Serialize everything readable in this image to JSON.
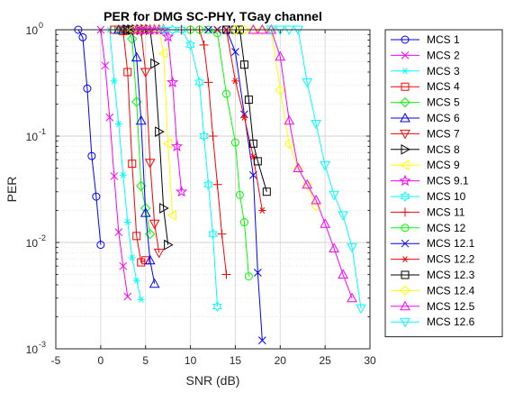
{
  "chart_data": {
    "type": "line",
    "title": "PER for DMG SC-PHY, TGay channel",
    "xlabel": "SNR (dB)",
    "ylabel": "PER",
    "xlim": [
      -5,
      30
    ],
    "ylim": [
      0.001,
      1
    ],
    "yscale": "log",
    "grid": true,
    "legend_position": "outside-right",
    "x_ticks": [
      -5,
      0,
      5,
      10,
      15,
      20,
      25,
      30
    ],
    "y_ticks": [
      {
        "value": 0.001,
        "base": "10",
        "exp": "-3"
      },
      {
        "value": 0.01,
        "base": "10",
        "exp": "-2"
      },
      {
        "value": 0.1,
        "base": "10",
        "exp": "-1"
      },
      {
        "value": 1,
        "base": "10",
        "exp": "0"
      }
    ],
    "series": [
      {
        "name": "MCS 1",
        "color": "#0000ff",
        "marker": "circle",
        "x": [
          -2.5,
          -2,
          -1.5,
          -1,
          -0.5,
          0
        ],
        "y": [
          1.0,
          0.85,
          0.28,
          0.065,
          0.027,
          0.0095
        ]
      },
      {
        "name": "MCS 2",
        "color": "#ff00ff",
        "marker": "x",
        "x": [
          0,
          0.5,
          1,
          1.5,
          2,
          2.5,
          3
        ],
        "y": [
          1.0,
          0.46,
          0.15,
          0.042,
          0.0125,
          0.006,
          0.0031
        ]
      },
      {
        "name": "MCS 3",
        "color": "#00ffff",
        "marker": "asterisk",
        "x": [
          1,
          1.5,
          2,
          2.5,
          3,
          3.5,
          4,
          4.5
        ],
        "y": [
          1.0,
          0.33,
          0.13,
          0.043,
          0.0155,
          0.0072,
          0.0044,
          0.0029
        ]
      },
      {
        "name": "MCS 4",
        "color": "#ff0000",
        "marker": "square",
        "x": [
          1.5,
          2,
          2.5,
          3,
          3.5,
          4,
          4.5,
          5
        ],
        "y": [
          1.0,
          1.0,
          0.97,
          0.4,
          0.055,
          0.0115,
          0.0065,
          0.0068
        ]
      },
      {
        "name": "MCS 5",
        "color": "#00ff00",
        "marker": "diamond",
        "x": [
          2,
          2.5,
          3,
          3.5,
          4,
          4.5,
          5,
          5.5
        ],
        "y": [
          1.0,
          1.0,
          1.0,
          0.82,
          0.21,
          0.034,
          0.021,
          0.012
        ]
      },
      {
        "name": "MCS 6",
        "color": "#0000ff",
        "marker": "triangle-up",
        "x": [
          2,
          2.5,
          3,
          3.5,
          4,
          4.5,
          5,
          5.5,
          6
        ],
        "y": [
          1.0,
          1.0,
          1.0,
          1.0,
          0.55,
          0.14,
          0.019,
          0.0068,
          0.0041
        ]
      },
      {
        "name": "MCS 7",
        "color": "#ff0000",
        "marker": "triangle-down",
        "x": [
          2.5,
          3,
          3.5,
          4,
          4.5,
          5,
          5.5,
          6,
          6.5
        ],
        "y": [
          1.0,
          1.0,
          1.0,
          1.0,
          0.97,
          0.4,
          0.056,
          0.015,
          0.008
        ]
      },
      {
        "name": "MCS 8",
        "color": "#000000",
        "marker": "triangle-right",
        "x": [
          3,
          3.5,
          4,
          4.5,
          5,
          5.5,
          6,
          6.5,
          7,
          7.5
        ],
        "y": [
          1.0,
          1.0,
          1.0,
          1.0,
          1.0,
          1.0,
          0.48,
          0.11,
          0.021,
          0.0095
        ]
      },
      {
        "name": "MCS 9",
        "color": "#ffff00",
        "marker": "triangle-left",
        "x": [
          3.5,
          4,
          4.5,
          5,
          5.5,
          6,
          6.5,
          7,
          7.5,
          8
        ],
        "y": [
          1.0,
          1.0,
          1.0,
          1.0,
          1.0,
          1.0,
          1.0,
          0.6,
          0.085,
          0.018
        ]
      },
      {
        "name": "MCS 9.1",
        "color": "#ff00ff",
        "marker": "pentagram",
        "x": [
          4,
          4.5,
          5,
          5.5,
          6,
          6.5,
          7,
          7.5,
          8,
          8.5,
          9
        ],
        "y": [
          1.0,
          1.0,
          1.0,
          1.0,
          1.0,
          1.0,
          1.0,
          0.86,
          0.32,
          0.08,
          0.03
        ]
      },
      {
        "name": "MCS 10",
        "color": "#00ffff",
        "marker": "hexagram",
        "x": [
          7,
          8,
          9,
          10,
          11,
          11.5,
          12,
          12.5,
          13
        ],
        "y": [
          1.0,
          1.0,
          1.0,
          0.72,
          0.32,
          0.1,
          0.035,
          0.012,
          0.0025
        ]
      },
      {
        "name": "MCS 11",
        "color": "#ff0000",
        "marker": "plus",
        "x": [
          9,
          10,
          11,
          11.5,
          12,
          12.5,
          13,
          13.5,
          14
        ],
        "y": [
          1.0,
          1.0,
          1.0,
          0.72,
          0.32,
          0.1,
          0.035,
          0.012,
          0.005
        ]
      },
      {
        "name": "MCS 12",
        "color": "#00ff00",
        "marker": "circle",
        "x": [
          10,
          11,
          12,
          13,
          14,
          15,
          15.5,
          16,
          16.5
        ],
        "y": [
          1.0,
          1.0,
          1.0,
          0.93,
          0.25,
          0.087,
          0.028,
          0.0155,
          0.0048
        ]
      },
      {
        "name": "MCS 12.1",
        "color": "#0000ff",
        "marker": "x",
        "x": [
          12,
          13,
          14,
          15,
          16,
          17,
          17.5,
          18
        ],
        "y": [
          1.0,
          1.0,
          1.0,
          0.62,
          0.16,
          0.043,
          0.0052,
          0.0012
        ]
      },
      {
        "name": "MCS 12.2",
        "color": "#ff0000",
        "marker": "asterisk",
        "x": [
          13,
          14,
          15,
          16,
          17,
          18
        ],
        "y": [
          1.0,
          1.0,
          0.33,
          0.15,
          0.064,
          0.02
        ]
      },
      {
        "name": "MCS 12.3",
        "color": "#000000",
        "marker": "square",
        "x": [
          14,
          15,
          15.5,
          16,
          16.5,
          17,
          17.5,
          18.5
        ],
        "y": [
          1.0,
          1.0,
          1.0,
          0.47,
          0.22,
          0.085,
          0.058,
          0.03
        ]
      },
      {
        "name": "MCS 12.4",
        "color": "#ffff00",
        "marker": "diamond",
        "x": [
          15,
          16,
          17,
          18,
          19,
          20,
          21,
          22,
          23,
          24
        ],
        "y": [
          1.0,
          1.0,
          1.0,
          1.0,
          1.0,
          0.27,
          0.085,
          0.05,
          0.035,
          0.022
        ]
      },
      {
        "name": "MCS 12.5",
        "color": "#ff00ff",
        "marker": "triangle-up",
        "x": [
          17,
          18,
          19,
          20,
          21,
          22,
          23,
          24,
          25,
          26,
          27,
          28
        ],
        "y": [
          1.0,
          1.0,
          1.0,
          0.56,
          0.14,
          0.05,
          0.035,
          0.025,
          0.015,
          0.0088,
          0.005,
          0.003
        ]
      },
      {
        "name": "MCS 12.6",
        "color": "#00ffff",
        "marker": "triangle-down",
        "x": [
          19,
          20,
          21,
          22,
          23,
          24,
          25,
          26,
          27,
          28,
          29
        ],
        "y": [
          1.0,
          1.0,
          1.0,
          1.0,
          0.32,
          0.13,
          0.053,
          0.028,
          0.018,
          0.009,
          0.0024
        ]
      }
    ]
  }
}
